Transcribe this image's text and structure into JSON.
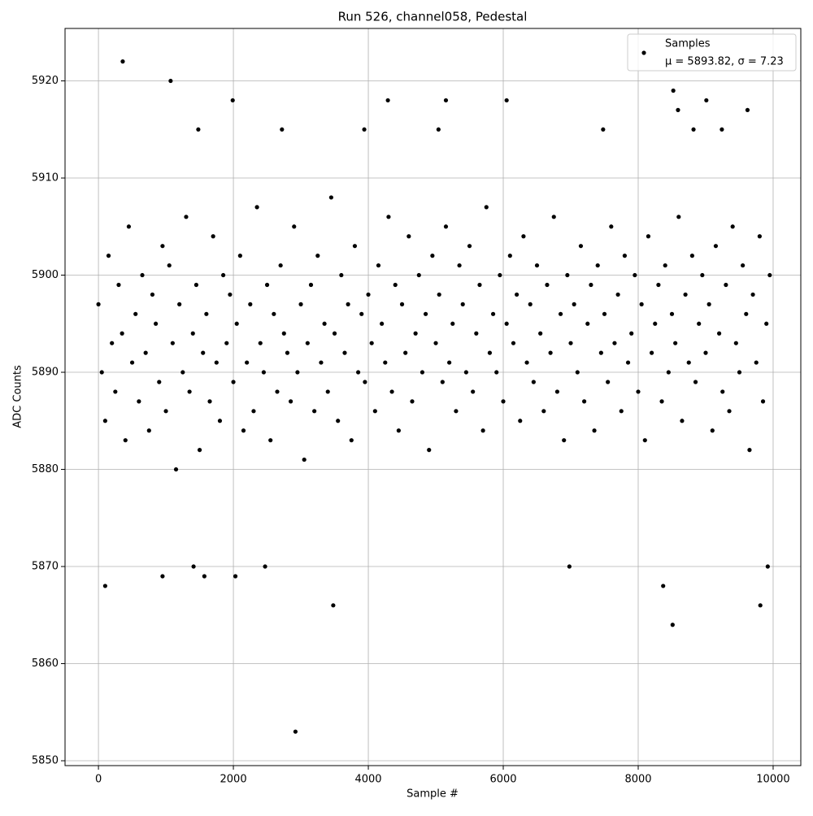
{
  "chart_data": {
    "type": "scatter",
    "title": "Run 526, channel058, Pedestal",
    "xlabel": "Sample #",
    "ylabel": "ADC Counts",
    "xlim": [
      -495,
      10410
    ],
    "ylim": [
      5849.5,
      5925.4
    ],
    "xticks": [
      0,
      2000,
      4000,
      6000,
      8000,
      10000
    ],
    "yticks": [
      5850,
      5860,
      5870,
      5880,
      5890,
      5900,
      5910,
      5920
    ],
    "grid": true,
    "legend": "upper right",
    "series": [
      {
        "name": "Samples",
        "label": "μ = 5893.82, σ = 7.23",
        "color": "#000000",
        "x": [
          0,
          50,
          100,
          150,
          200,
          250,
          300,
          350,
          400,
          450,
          500,
          550,
          600,
          650,
          700,
          750,
          800,
          850,
          900,
          950,
          1000,
          1050,
          1100,
          1150,
          1200,
          1250,
          1300,
          1350,
          1400,
          1450,
          1500,
          1550,
          1600,
          1650,
          1700,
          1750,
          1800,
          1850,
          1900,
          1950,
          2000,
          2050,
          2100,
          2150,
          2200,
          2250,
          2300,
          2350,
          2400,
          2450,
          2500,
          2550,
          2600,
          2650,
          2700,
          2750,
          2800,
          2850,
          2900,
          2950,
          3000,
          3050,
          3100,
          3150,
          3200,
          3250,
          3300,
          3350,
          3400,
          3450,
          3500,
          3550,
          3600,
          3650,
          3700,
          3750,
          3800,
          3850,
          3900,
          3950,
          4000,
          4050,
          4100,
          4150,
          4200,
          4250,
          4300,
          4350,
          4400,
          4450,
          4500,
          4550,
          4600,
          4650,
          4700,
          4750,
          4800,
          4850,
          4900,
          4950,
          5000,
          5050,
          5100,
          5150,
          5200,
          5250,
          5300,
          5350,
          5400,
          5450,
          5500,
          5550,
          5600,
          5650,
          5700,
          5750,
          5800,
          5850,
          5900,
          5950,
          6000,
          6050,
          6100,
          6150,
          6200,
          6250,
          6300,
          6350,
          6400,
          6450,
          6500,
          6550,
          6600,
          6650,
          6700,
          6750,
          6800,
          6850,
          6900,
          6950,
          7000,
          7050,
          7100,
          7150,
          7200,
          7250,
          7300,
          7350,
          7400,
          7450,
          7500,
          7550,
          7600,
          7650,
          7700,
          7750,
          7800,
          7850,
          7900,
          7950,
          8000,
          8050,
          8100,
          8150,
          8200,
          8250,
          8300,
          8350,
          8400,
          8450,
          8500,
          8550,
          8600,
          8650,
          8700,
          8750,
          8800,
          8850,
          8900,
          8950,
          9000,
          9050,
          9100,
          9150,
          9200,
          9250,
          9300,
          9350,
          9400,
          9450,
          9500,
          9550,
          9600,
          9650,
          9700,
          9750,
          9800,
          9850,
          9900,
          9950,
          360,
          1070,
          1990,
          2920,
          3480,
          8510,
          9810,
          8370,
          100,
          950,
          2030,
          1570,
          6980,
          1410,
          2470,
          9920,
          4290,
          5150,
          6050,
          9010,
          8520,
          8590,
          9620,
          1480,
          2720,
          3940,
          5040,
          7480,
          8820,
          9240
        ],
        "values": [
          5897,
          5890,
          5885,
          5902,
          5893,
          5888,
          5899,
          5894,
          5883,
          5905,
          5891,
          5896,
          5887,
          5900,
          5892,
          5884,
          5898,
          5895,
          5889,
          5903,
          5886,
          5901,
          5893,
          5880,
          5897,
          5890,
          5906,
          5888,
          5894,
          5899,
          5882,
          5892,
          5896,
          5887,
          5904,
          5891,
          5885,
          5900,
          5893,
          5898,
          5889,
          5895,
          5902,
          5884,
          5891,
          5897,
          5886,
          5907,
          5893,
          5890,
          5899,
          5883,
          5896,
          5888,
          5901,
          5894,
          5892,
          5887,
          5905,
          5890,
          5897,
          5881,
          5893,
          5899,
          5886,
          5902,
          5891,
          5895,
          5888,
          5908,
          5894,
          5885,
          5900,
          5892,
          5897,
          5883,
          5903,
          5890,
          5896,
          5889,
          5898,
          5893,
          5886,
          5901,
          5895,
          5891,
          5906,
          5888,
          5899,
          5884,
          5897,
          5892,
          5904,
          5887,
          5894,
          5900,
          5890,
          5896,
          5882,
          5902,
          5893,
          5898,
          5889,
          5905,
          5891,
          5895,
          5886,
          5901,
          5897,
          5890,
          5903,
          5888,
          5894,
          5899,
          5884,
          5907,
          5892,
          5896,
          5890,
          5900,
          5887,
          5895,
          5902,
          5893,
          5898,
          5885,
          5904,
          5891,
          5897,
          5889,
          5901,
          5894,
          5886,
          5899,
          5892,
          5906,
          5888,
          5896,
          5883,
          5900,
          5893,
          5897,
          5890,
          5903,
          5887,
          5895,
          5899,
          5884,
          5901,
          5892,
          5896,
          5889,
          5905,
          5893,
          5898,
          5886,
          5902,
          5891,
          5894,
          5900,
          5888,
          5897,
          5883,
          5904,
          5892,
          5895,
          5899,
          5887,
          5901,
          5890,
          5896,
          5893,
          5906,
          5885,
          5898,
          5891,
          5902,
          5889,
          5895,
          5900,
          5892,
          5897,
          5884,
          5903,
          5894,
          5888,
          5899,
          5886,
          5905,
          5893,
          5890,
          5901,
          5896,
          5882,
          5898,
          5891,
          5904,
          5887,
          5895,
          5900,
          5922,
          5920,
          5918,
          5853,
          5866,
          5864,
          5866,
          5868,
          5868,
          5869,
          5869,
          5869,
          5870,
          5870,
          5870,
          5870,
          5918,
          5918,
          5918,
          5918,
          5919,
          5917,
          5917,
          5915,
          5915,
          5915,
          5915,
          5915,
          5915,
          5915
        ]
      }
    ]
  }
}
